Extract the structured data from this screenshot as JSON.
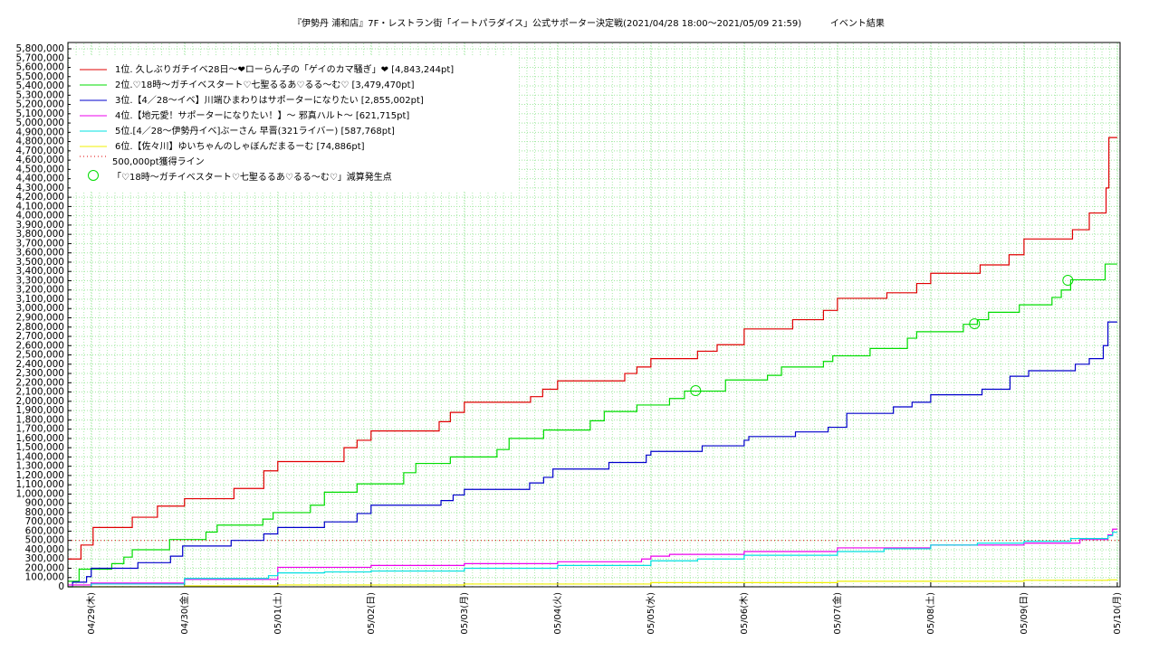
{
  "chart_data": {
    "type": "step-line",
    "title": "『伊勢丹 浦和店』7F・レストラン街「イートパラダイス」公式サポーター決定戦(2021/04/28 18:00〜2021/05/09 21:59)          イベント結果",
    "xlim": [
      -0.25,
      11.03
    ],
    "xticks": [
      {
        "value": 0,
        "label": "04/29(木)"
      },
      {
        "value": 1,
        "label": "04/30(金)"
      },
      {
        "value": 2,
        "label": "05/01(土)"
      },
      {
        "value": 3,
        "label": "05/02(日)"
      },
      {
        "value": 4,
        "label": "05/03(月)"
      },
      {
        "value": 5,
        "label": "05/04(火)"
      },
      {
        "value": 6,
        "label": "05/05(水)"
      },
      {
        "value": 7,
        "label": "05/06(木)"
      },
      {
        "value": 8,
        "label": "05/07(金)"
      },
      {
        "value": 9,
        "label": "05/08(土)"
      },
      {
        "value": 10,
        "label": "05/09(日)"
      },
      {
        "value": 11,
        "label": "05/10(月)"
      }
    ],
    "ylim": [
      0,
      5800000
    ],
    "yticks": [
      0,
      {
        "value": 100000,
        "label": "100,000"
      },
      {
        "value": 200000,
        "label": "200,000"
      },
      {
        "value": 300000,
        "label": "300,000"
      },
      {
        "value": 400000,
        "label": "400,000"
      },
      {
        "value": 500000,
        "label": "500,000"
      },
      {
        "value": 600000,
        "label": "600,000"
      },
      {
        "value": 700000,
        "label": "700,000"
      },
      {
        "value": 800000,
        "label": "800,000"
      },
      {
        "value": 900000,
        "label": "900,000"
      },
      {
        "value": 1000000,
        "label": "1,000,000"
      },
      {
        "value": 1100000,
        "label": "1,100,000"
      },
      {
        "value": 1200000,
        "label": "1,200,000"
      },
      {
        "value": 1300000,
        "label": "1,300,000"
      },
      {
        "value": 1400000,
        "label": "1,400,000"
      },
      {
        "value": 1500000,
        "label": "1,500,000"
      },
      {
        "value": 1600000,
        "label": "1,600,000"
      },
      {
        "value": 1700000,
        "label": "1,700,000"
      },
      {
        "value": 1800000,
        "label": "1,800,000"
      },
      {
        "value": 1900000,
        "label": "1,900,000"
      },
      {
        "value": 2000000,
        "label": "2,000,000"
      },
      {
        "value": 2100000,
        "label": "2,100,000"
      },
      {
        "value": 2200000,
        "label": "2,200,000"
      },
      {
        "value": 2300000,
        "label": "2,300,000"
      },
      {
        "value": 2400000,
        "label": "2,400,000"
      },
      {
        "value": 2500000,
        "label": "2,500,000"
      },
      {
        "value": 2600000,
        "label": "2,600,000"
      },
      {
        "value": 2700000,
        "label": "2,700,000"
      },
      {
        "value": 2800000,
        "label": "2,800,000"
      },
      {
        "value": 2900000,
        "label": "2,900,000"
      },
      {
        "value": 3000000,
        "label": "3,000,000"
      },
      {
        "value": 3100000,
        "label": "3,100,000"
      },
      {
        "value": 3200000,
        "label": "3,200,000"
      },
      {
        "value": 3300000,
        "label": "3,300,000"
      },
      {
        "value": 3400000,
        "label": "3,400,000"
      },
      {
        "value": 3500000,
        "label": "3,500,000"
      },
      {
        "value": 3600000,
        "label": "3,600,000"
      },
      {
        "value": 3700000,
        "label": "3,700,000"
      },
      {
        "value": 3800000,
        "label": "3,800,000"
      },
      {
        "value": 3900000,
        "label": "3,900,000"
      },
      {
        "value": 4000000,
        "label": "4,000,000"
      },
      {
        "value": 4100000,
        "label": "4,100,000"
      },
      {
        "value": 4200000,
        "label": "4,200,000"
      },
      {
        "value": 4300000,
        "label": "4,300,000"
      },
      {
        "value": 4400000,
        "label": "4,400,000"
      },
      {
        "value": 4500000,
        "label": "4,500,000"
      },
      {
        "value": 4600000,
        "label": "4,600,000"
      },
      {
        "value": 4700000,
        "label": "4,700,000"
      },
      {
        "value": 4800000,
        "label": "4,800,000"
      },
      {
        "value": 4900000,
        "label": "4,900,000"
      },
      {
        "value": 5000000,
        "label": "5,000,000"
      },
      {
        "value": 5100000,
        "label": "5,100,000"
      },
      {
        "value": 5200000,
        "label": "5,200,000"
      },
      {
        "value": 5300000,
        "label": "5,300,000"
      },
      {
        "value": 5400000,
        "label": "5,400,000"
      },
      {
        "value": 5500000,
        "label": "5,500,000"
      },
      {
        "value": 5600000,
        "label": "5,600,000"
      },
      {
        "value": 5700000,
        "label": "5,700,000"
      },
      {
        "value": 5800000,
        "label": "5,800,000"
      }
    ],
    "grid": true,
    "legend": "upper left",
    "series": [
      {
        "name": "1位. 久しぶりガチイベ28日〜❤ローらん子の「ゲイのカマ騒ぎ」❤ [4,843,244pt]",
        "color": "#e00000",
        "x": [
          -0.25,
          -0.11,
          0.02,
          0.44,
          0.71,
          1.0,
          1.53,
          1.85,
          2.0,
          2.71,
          2.85,
          3.0,
          3.73,
          3.85,
          4.0,
          4.71,
          4.84,
          5.0,
          5.72,
          5.85,
          6.0,
          6.5,
          6.71,
          7.0,
          7.52,
          7.85,
          8.0,
          8.53,
          8.85,
          9.0,
          9.53,
          9.84,
          10.0,
          10.52,
          10.7,
          10.88,
          10.91,
          11.0
        ],
        "values": [
          300000,
          450000,
          640000,
          750000,
          870000,
          950000,
          1060000,
          1250000,
          1350000,
          1500000,
          1580000,
          1680000,
          1780000,
          1880000,
          1990000,
          2050000,
          2130000,
          2220000,
          2300000,
          2370000,
          2460000,
          2540000,
          2610000,
          2780000,
          2880000,
          2980000,
          3110000,
          3170000,
          3270000,
          3380000,
          3470000,
          3580000,
          3750000,
          3850000,
          4030000,
          4300000,
          4843244,
          4843244
        ]
      },
      {
        "name": "2位.♡18時〜ガチイベスタート♡七聖るるあ♡るる〜む♡ [3,479,470pt]",
        "color": "#00dd00",
        "x": [
          -0.25,
          -0.13,
          0.22,
          0.35,
          0.44,
          0.84,
          1.23,
          1.35,
          1.84,
          1.95,
          2.35,
          2.5,
          2.85,
          3.35,
          3.48,
          3.85,
          4.35,
          4.48,
          4.85,
          5.35,
          5.5,
          5.85,
          6.2,
          6.36,
          6.8,
          7.25,
          7.4,
          7.85,
          7.95,
          8.35,
          8.75,
          8.85,
          9.35,
          9.5,
          9.62,
          9.95,
          10.3,
          10.4,
          10.5,
          10.87,
          11.0
        ],
        "values": [
          60000,
          190000,
          250000,
          320000,
          400000,
          510000,
          590000,
          665000,
          730000,
          800000,
          880000,
          1020000,
          1110000,
          1230000,
          1330000,
          1400000,
          1480000,
          1600000,
          1690000,
          1790000,
          1890000,
          1960000,
          2030000,
          2110000,
          2230000,
          2280000,
          2370000,
          2430000,
          2490000,
          2570000,
          2680000,
          2750000,
          2830000,
          2880000,
          2960000,
          3040000,
          3120000,
          3200000,
          3310000,
          3479470,
          3479470
        ]
      },
      {
        "name": "3位.【4／28〜イベ】川端ひまわりはサポーターになりたい [2,855,002pt]",
        "color": "#0000cc",
        "x": [
          -0.25,
          -0.2,
          -0.05,
          0.0,
          0.5,
          0.85,
          0.98,
          1.5,
          1.85,
          2.0,
          2.5,
          2.85,
          3.0,
          3.75,
          3.88,
          4.0,
          4.7,
          4.85,
          4.95,
          5.55,
          5.95,
          6.0,
          6.55,
          7.0,
          7.05,
          7.55,
          7.9,
          8.1,
          8.6,
          8.8,
          9.0,
          9.55,
          9.85,
          10.05,
          10.55,
          10.7,
          10.85,
          10.9,
          11.0
        ],
        "values": [
          0,
          50000,
          110000,
          200000,
          260000,
          330000,
          440000,
          500000,
          570000,
          640000,
          700000,
          790000,
          880000,
          930000,
          990000,
          1050000,
          1120000,
          1180000,
          1270000,
          1340000,
          1420000,
          1460000,
          1520000,
          1580000,
          1620000,
          1670000,
          1720000,
          1870000,
          1940000,
          1990000,
          2070000,
          2130000,
          2270000,
          2330000,
          2400000,
          2460000,
          2600000,
          2855002,
          2855002
        ]
      },
      {
        "name": "4位.【地元愛！サポーターになりたい！】〜 邪真ハルト〜 [621,715pt]",
        "color": "#ee00ee",
        "x": [
          -0.25,
          0.0,
          1.0,
          2.0,
          3.0,
          4.0,
          5.0,
          5.9,
          6.0,
          6.2,
          7.0,
          8.0,
          9.0,
          10.0,
          10.6,
          10.9,
          10.95,
          11.0
        ],
        "values": [
          20000,
          40000,
          80000,
          210000,
          230000,
          250000,
          270000,
          300000,
          330000,
          350000,
          380000,
          420000,
          450000,
          470000,
          510000,
          560000,
          621715,
          621715
        ]
      },
      {
        "name": "5位.[4／28〜伊勢丹イベ]ぶーさん 早晋(321ライバー) [587,768pt]",
        "color": "#00e0e0",
        "x": [
          -0.25,
          0.0,
          1.0,
          1.9,
          2.0,
          2.5,
          3.0,
          4.0,
          5.0,
          6.0,
          6.5,
          7.0,
          8.0,
          8.5,
          9.0,
          9.5,
          10.0,
          10.5,
          10.9,
          10.95,
          11.0
        ],
        "values": [
          0,
          30000,
          90000,
          120000,
          150000,
          160000,
          170000,
          200000,
          230000,
          280000,
          300000,
          340000,
          380000,
          410000,
          450000,
          470000,
          490000,
          520000,
          550000,
          587768,
          587768
        ]
      },
      {
        "name": "6位.【佐々川】ゆいちゃんのしゃぼんだまるーむ [74,886pt]",
        "color": "#f0f000",
        "x": [
          -0.25,
          1.0,
          2.0,
          4.0,
          6.0,
          8.0,
          10.0,
          10.9,
          11.0
        ],
        "values": [
          0,
          10000,
          20000,
          30000,
          45000,
          60000,
          70000,
          74886,
          74886
        ]
      }
    ],
    "reference_line": {
      "name": "500,000pt獲得ライン",
      "value": 500000,
      "color": "#e00000"
    },
    "markers": {
      "name": "「♡18時〜ガチイベスタート♡七聖るるあ♡るる〜む♡」減算発生点",
      "color": "#00dd00",
      "x": [
        6.48,
        9.47,
        10.47
      ],
      "values": [
        2115000,
        2836000,
        3304000
      ]
    }
  }
}
